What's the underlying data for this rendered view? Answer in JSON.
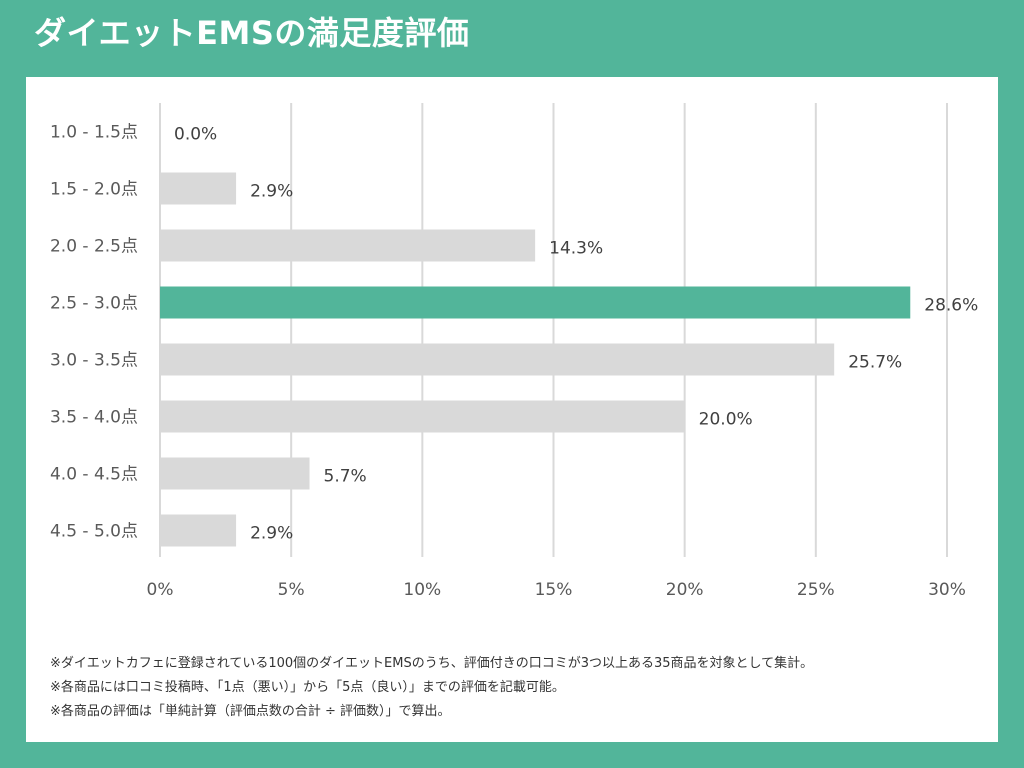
{
  "title": "ダイエットEMSの満足度評価",
  "colors": {
    "page_background": "#52b59a",
    "highlight_bar": "#52b59a",
    "bar": "#d9d9d9",
    "grid": "#d9d9d9",
    "label": "#595959"
  },
  "chart_data": {
    "type": "bar",
    "orientation": "horizontal",
    "categories": [
      "1.0 - 1.5点",
      "1.5 - 2.0点",
      "2.0 - 2.5点",
      "2.5 - 3.0点",
      "3.0 - 3.5点",
      "3.5 - 4.0点",
      "4.0 - 4.5点",
      "4.5 - 5.0点"
    ],
    "values": [
      0.0,
      2.9,
      14.3,
      28.6,
      25.7,
      20.0,
      5.7,
      2.9
    ],
    "value_labels": [
      "0.0%",
      "2.9%",
      "14.3%",
      "28.6%",
      "25.7%",
      "20.0%",
      "5.7%",
      "2.9%"
    ],
    "highlight_index": 3,
    "xlim": [
      0,
      30
    ],
    "x_ticks": [
      0,
      5,
      10,
      15,
      20,
      25,
      30
    ],
    "x_tick_labels": [
      "0%",
      "5%",
      "10%",
      "15%",
      "20%",
      "25%",
      "30%"
    ],
    "grid": true,
    "legend": "none"
  },
  "notes": [
    "※ダイエットカフェに登録されている100個のダイエットEMSのうち、評価付きの口コミが3つ以上ある35商品を対象として集計。",
    "※各商品には口コミ投稿時、「1点（悪い）」から「5点（良い）」までの評価を記載可能。",
    "※各商品の評価は「単純計算（評価点数の合計 ÷ 評価数）」で算出。"
  ]
}
